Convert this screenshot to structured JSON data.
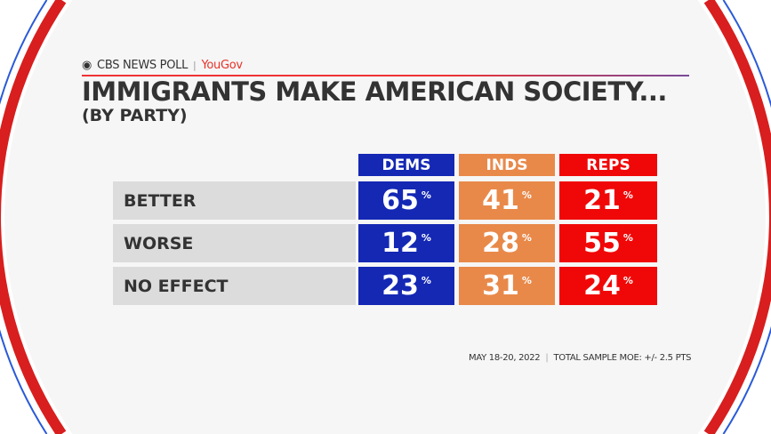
{
  "brand": {
    "network": "CBS NEWS POLL",
    "partner": "YouGov"
  },
  "title": "IMMIGRANTS MAKE AMERICAN SOCIETY...",
  "subtitle": "(BY PARTY)",
  "colors": {
    "dems": "#1428b4",
    "inds": "#e8894a",
    "reps": "#f00808",
    "label_bg": "#dcdcdc",
    "ring_red": "#d81e1e",
    "ring_blue": "#2a5ad8"
  },
  "chart_data": {
    "type": "table",
    "columns": [
      "DEMS",
      "INDS",
      "REPS"
    ],
    "rows": [
      {
        "label": "BETTER",
        "values": [
          65,
          41,
          21
        ]
      },
      {
        "label": "WORSE",
        "values": [
          12,
          28,
          55
        ]
      },
      {
        "label": "NO EFFECT",
        "values": [
          23,
          31,
          24
        ]
      }
    ],
    "unit": "%"
  },
  "footer": {
    "date": "MAY 18-20, 2022",
    "moe": "TOTAL SAMPLE MOE: +/- 2.5 PTS"
  }
}
